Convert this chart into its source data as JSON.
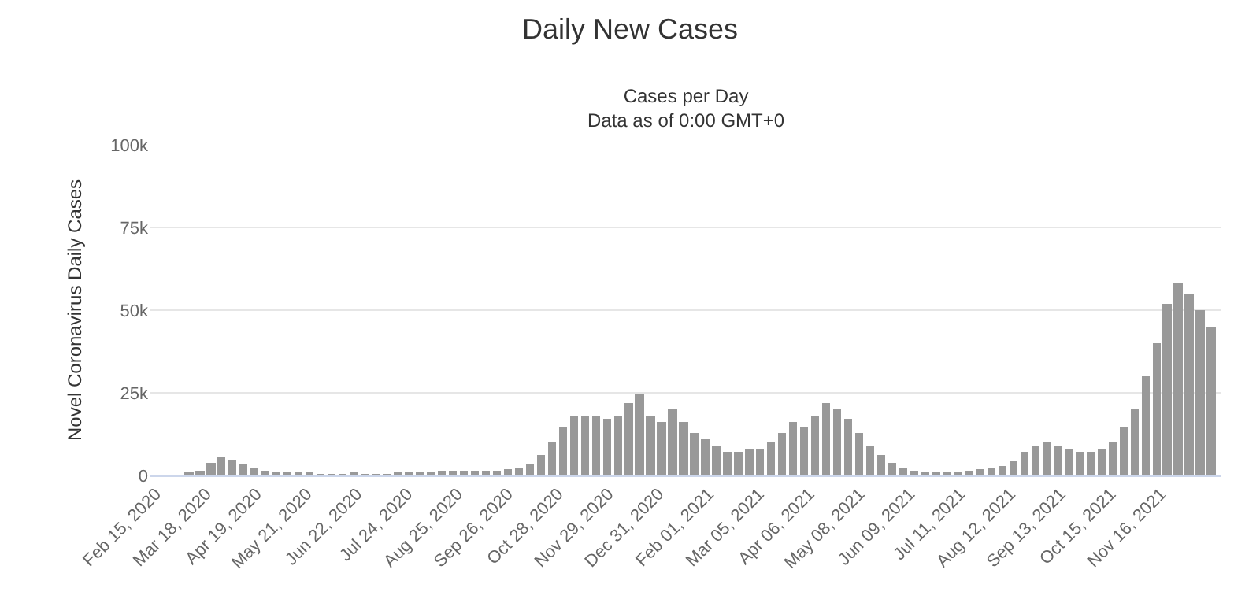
{
  "chart_data": {
    "type": "bar",
    "title": "Daily New Cases",
    "subtitle": "Cases per Day\nData as of 0:00 GMT+0",
    "ylabel": "Novel Coronavirus Daily Cases",
    "color": "#999999",
    "grid": "y",
    "legend": false,
    "x": [
      "2020-02-15",
      "2020-02-22",
      "2020-02-29",
      "2020-03-07",
      "2020-03-14",
      "2020-03-21",
      "2020-03-28",
      "2020-04-04",
      "2020-04-11",
      "2020-04-18",
      "2020-04-25",
      "2020-05-02",
      "2020-05-09",
      "2020-05-16",
      "2020-05-23",
      "2020-05-30",
      "2020-06-06",
      "2020-06-13",
      "2020-06-20",
      "2020-06-27",
      "2020-07-04",
      "2020-07-11",
      "2020-07-18",
      "2020-07-25",
      "2020-08-01",
      "2020-08-08",
      "2020-08-15",
      "2020-08-22",
      "2020-08-29",
      "2020-09-05",
      "2020-09-12",
      "2020-09-19",
      "2020-09-26",
      "2020-10-03",
      "2020-10-10",
      "2020-10-17",
      "2020-10-24",
      "2020-10-31",
      "2020-11-07",
      "2020-11-14",
      "2020-11-21",
      "2020-11-28",
      "2020-12-05",
      "2020-12-12",
      "2020-12-19",
      "2020-12-26",
      "2021-01-02",
      "2021-01-09",
      "2021-01-16",
      "2021-01-23",
      "2021-01-30",
      "2021-02-06",
      "2021-02-13",
      "2021-02-20",
      "2021-02-27",
      "2021-03-06",
      "2021-03-13",
      "2021-03-20",
      "2021-03-27",
      "2021-04-03",
      "2021-04-10",
      "2021-04-17",
      "2021-04-24",
      "2021-05-01",
      "2021-05-08",
      "2021-05-15",
      "2021-05-22",
      "2021-05-29",
      "2021-06-05",
      "2021-06-12",
      "2021-06-19",
      "2021-06-26",
      "2021-07-03",
      "2021-07-10",
      "2021-07-17",
      "2021-07-24",
      "2021-07-31",
      "2021-08-07",
      "2021-08-14",
      "2021-08-21",
      "2021-08-28",
      "2021-09-04",
      "2021-09-11",
      "2021-09-18",
      "2021-09-25",
      "2021-10-02",
      "2021-10-09",
      "2021-10-16",
      "2021-10-23",
      "2021-10-30",
      "2021-11-06",
      "2021-11-13",
      "2021-11-20",
      "2021-11-27",
      "2021-12-04",
      "2021-12-11",
      "2021-12-18"
    ],
    "values": [
      0,
      0,
      0,
      500,
      1500,
      4000,
      5500,
      5000,
      3500,
      2500,
      1500,
      1000,
      800,
      600,
      500,
      400,
      350,
      300,
      500,
      400,
      350,
      350,
      500,
      700,
      800,
      1000,
      1200,
      1300,
      1200,
      1200,
      1400,
      1600,
      1800,
      2200,
      3500,
      6000,
      10000,
      15000,
      18000,
      18000,
      18000,
      17000,
      18000,
      22000,
      25000,
      18000,
      16000,
      20000,
      16000,
      13000,
      11000,
      9000,
      7000,
      7000,
      8000,
      8000,
      10000,
      13000,
      16000,
      15000,
      18000,
      22000,
      20000,
      17000,
      13000,
      9000,
      6000,
      4000,
      2500,
      1500,
      800,
      600,
      600,
      800,
      1200,
      1700,
      2200,
      3000,
      4500,
      7000,
      9000,
      10000,
      9000,
      8000,
      7000,
      7000,
      8000,
      10000,
      15000,
      20000,
      30000,
      40000,
      52000,
      58000,
      55000,
      50000,
      45000
    ],
    "xlim": [
      "2020-02-11",
      "2021-12-24"
    ],
    "xticks": [
      {
        "value": "2020-02-15",
        "label": "Feb 15, 2020"
      },
      {
        "value": "2020-03-18",
        "label": "Mar 18, 2020"
      },
      {
        "value": "2020-04-19",
        "label": "Apr 19, 2020"
      },
      {
        "value": "2020-05-21",
        "label": "May 21, 2020"
      },
      {
        "value": "2020-06-22",
        "label": "Jun 22, 2020"
      },
      {
        "value": "2020-07-24",
        "label": "Jul 24, 2020"
      },
      {
        "value": "2020-08-25",
        "label": "Aug 25, 2020"
      },
      {
        "value": "2020-09-26",
        "label": "Sep 26, 2020"
      },
      {
        "value": "2020-10-28",
        "label": "Oct 28, 2020"
      },
      {
        "value": "2020-11-29",
        "label": "Nov 29, 2020"
      },
      {
        "value": "2020-12-31",
        "label": "Dec 31, 2020"
      },
      {
        "value": "2021-02-01",
        "label": "Feb 01, 2021"
      },
      {
        "value": "2021-03-05",
        "label": "Mar 05, 2021"
      },
      {
        "value": "2021-04-06",
        "label": "Apr 06, 2021"
      },
      {
        "value": "2021-05-08",
        "label": "May 08, 2021"
      },
      {
        "value": "2021-06-09",
        "label": "Jun 09, 2021"
      },
      {
        "value": "2021-07-11",
        "label": "Jul 11, 2021"
      },
      {
        "value": "2021-08-12",
        "label": "Aug 12, 2021"
      },
      {
        "value": "2021-09-13",
        "label": "Sep 13, 2021"
      },
      {
        "value": "2021-10-15",
        "label": "Oct 15, 2021"
      },
      {
        "value": "2021-11-16",
        "label": "Nov 16, 2021"
      }
    ],
    "ylim": [
      0,
      100000
    ],
    "yticks": [
      0,
      {
        "value": 25000,
        "label": "25k"
      },
      {
        "value": 50000,
        "label": "50k"
      },
      {
        "value": 75000,
        "label": "75k"
      },
      {
        "value": 100000,
        "label": "100k"
      }
    ]
  }
}
